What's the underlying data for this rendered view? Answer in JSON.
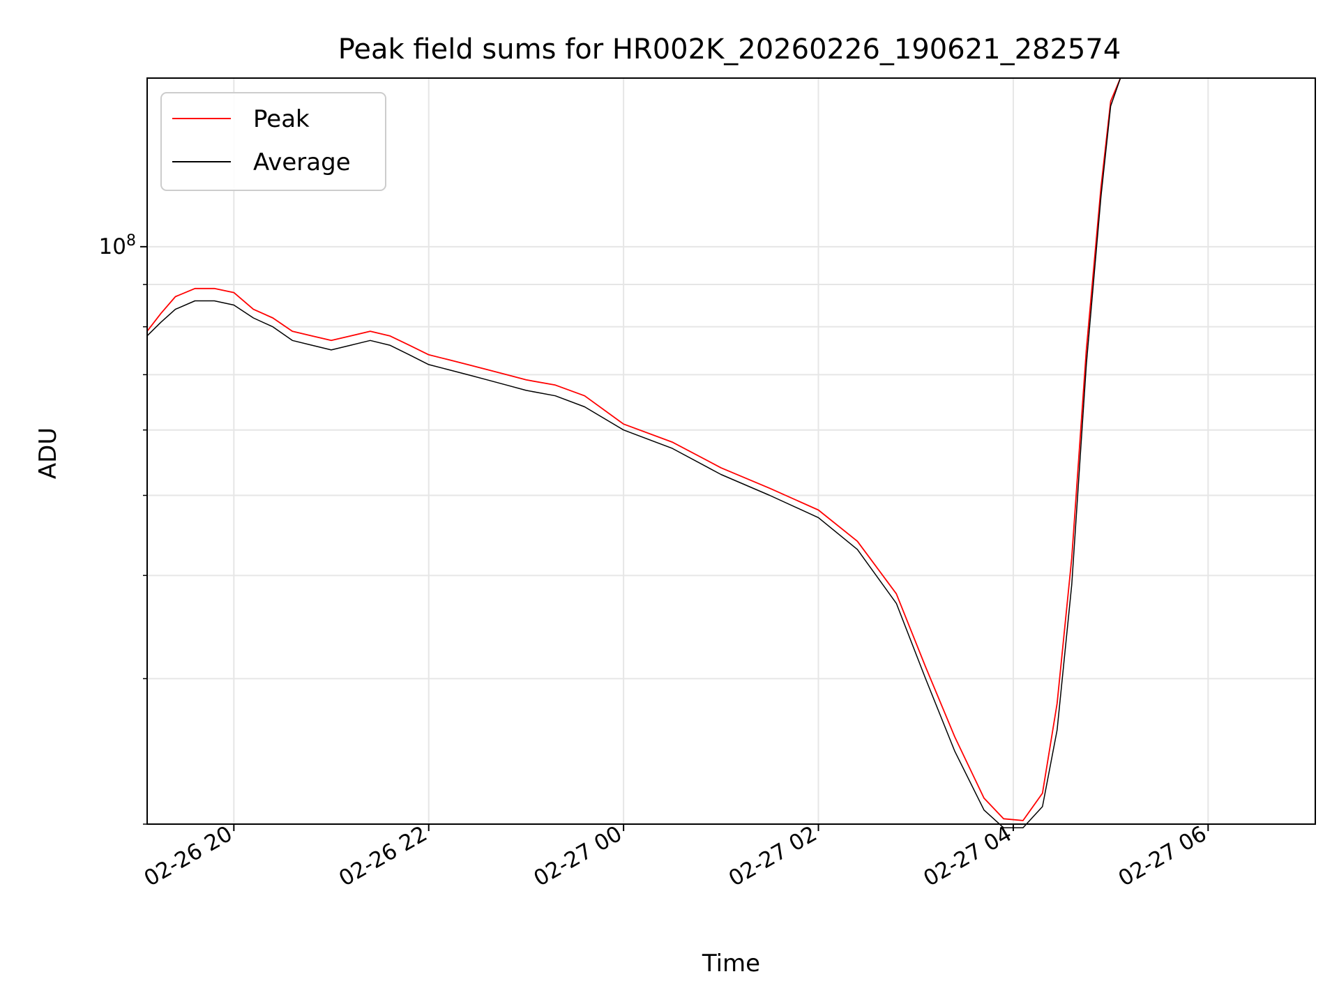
{
  "chart_data": {
    "type": "line",
    "title": "Peak field sums for HR002K_20260226_190621_282574",
    "xlabel": "Time",
    "ylabel": "ADU",
    "x_axis": {
      "unit": "hours since 02-26 00:00",
      "range": [
        19.11,
        31.1
      ],
      "ticks": [
        {
          "value": 20,
          "label": "02-26 20"
        },
        {
          "value": 22,
          "label": "02-26 22"
        },
        {
          "value": 24,
          "label": "02-27 00"
        },
        {
          "value": 26,
          "label": "02-27 02"
        },
        {
          "value": 28,
          "label": "02-27 04"
        },
        {
          "value": 30,
          "label": "02-27 06"
        }
      ]
    },
    "y_axis": {
      "scale": "log",
      "range": [
        20000000,
        160000000
      ],
      "major_ticks": [
        {
          "value": 100000000,
          "base": "10",
          "exponent": "8"
        }
      ],
      "minor_ticks": [
        20000000,
        30000000,
        40000000,
        50000000,
        60000000,
        70000000,
        80000000,
        90000000,
        200000000
      ]
    },
    "grid": true,
    "legend": {
      "position": "top-left",
      "entries": [
        {
          "label": "Peak",
          "color": "#ff0000"
        },
        {
          "label": "Average",
          "color": "#000000"
        }
      ]
    },
    "series": [
      {
        "name": "Peak",
        "color": "#ff0000",
        "points": [
          [
            19.11,
            79000000
          ],
          [
            19.25,
            83000000
          ],
          [
            19.4,
            87000000
          ],
          [
            19.6,
            89000000
          ],
          [
            19.8,
            89000000
          ],
          [
            20.0,
            88000000
          ],
          [
            20.2,
            84000000
          ],
          [
            20.4,
            82000000
          ],
          [
            20.6,
            79000000
          ],
          [
            20.8,
            78000000
          ],
          [
            21.0,
            77000000
          ],
          [
            21.2,
            78000000
          ],
          [
            21.4,
            79000000
          ],
          [
            21.6,
            78000000
          ],
          [
            21.8,
            76000000
          ],
          [
            22.0,
            74000000
          ],
          [
            22.2,
            73000000
          ],
          [
            22.4,
            72000000
          ],
          [
            22.6,
            71000000
          ],
          [
            22.8,
            70000000
          ],
          [
            23.0,
            69000000
          ],
          [
            23.3,
            68000000
          ],
          [
            23.6,
            66000000
          ],
          [
            24.0,
            61000000
          ],
          [
            24.5,
            58000000
          ],
          [
            25.0,
            54000000
          ],
          [
            25.5,
            51000000
          ],
          [
            26.0,
            48000000
          ],
          [
            26.4,
            44000000
          ],
          [
            26.8,
            38000000
          ],
          [
            27.1,
            31000000
          ],
          [
            27.4,
            25500000
          ],
          [
            27.7,
            21500000
          ],
          [
            27.9,
            20300000
          ],
          [
            28.1,
            20200000
          ],
          [
            28.3,
            21800000
          ],
          [
            28.45,
            28000000
          ],
          [
            28.6,
            42000000
          ],
          [
            28.75,
            75000000
          ],
          [
            28.9,
            118000000
          ],
          [
            29.0,
            150000000
          ],
          [
            29.1,
            160000000
          ],
          [
            29.2,
            160000000
          ]
        ]
      },
      {
        "name": "Average",
        "color": "#000000",
        "points": [
          [
            19.11,
            78000000
          ],
          [
            19.25,
            81000000
          ],
          [
            19.4,
            84000000
          ],
          [
            19.6,
            86000000
          ],
          [
            19.8,
            86000000
          ],
          [
            20.0,
            85000000
          ],
          [
            20.2,
            82000000
          ],
          [
            20.4,
            80000000
          ],
          [
            20.6,
            77000000
          ],
          [
            20.8,
            76000000
          ],
          [
            21.0,
            75000000
          ],
          [
            21.2,
            76000000
          ],
          [
            21.4,
            77000000
          ],
          [
            21.6,
            76000000
          ],
          [
            21.8,
            74000000
          ],
          [
            22.0,
            72000000
          ],
          [
            22.2,
            71000000
          ],
          [
            22.4,
            70000000
          ],
          [
            22.6,
            69000000
          ],
          [
            22.8,
            68000000
          ],
          [
            23.0,
            67000000
          ],
          [
            23.3,
            66000000
          ],
          [
            23.6,
            64000000
          ],
          [
            24.0,
            60000000
          ],
          [
            24.5,
            57000000
          ],
          [
            25.0,
            53000000
          ],
          [
            25.5,
            50000000
          ],
          [
            26.0,
            47000000
          ],
          [
            26.4,
            43000000
          ],
          [
            26.8,
            37000000
          ],
          [
            27.1,
            30000000
          ],
          [
            27.4,
            24500000
          ],
          [
            27.7,
            20800000
          ],
          [
            27.9,
            19800000
          ],
          [
            28.1,
            19800000
          ],
          [
            28.3,
            21000000
          ],
          [
            28.45,
            26000000
          ],
          [
            28.6,
            39000000
          ],
          [
            28.75,
            72000000
          ],
          [
            28.9,
            115000000
          ],
          [
            29.0,
            148000000
          ],
          [
            29.1,
            160000000
          ],
          [
            29.2,
            160000000
          ]
        ]
      }
    ]
  }
}
